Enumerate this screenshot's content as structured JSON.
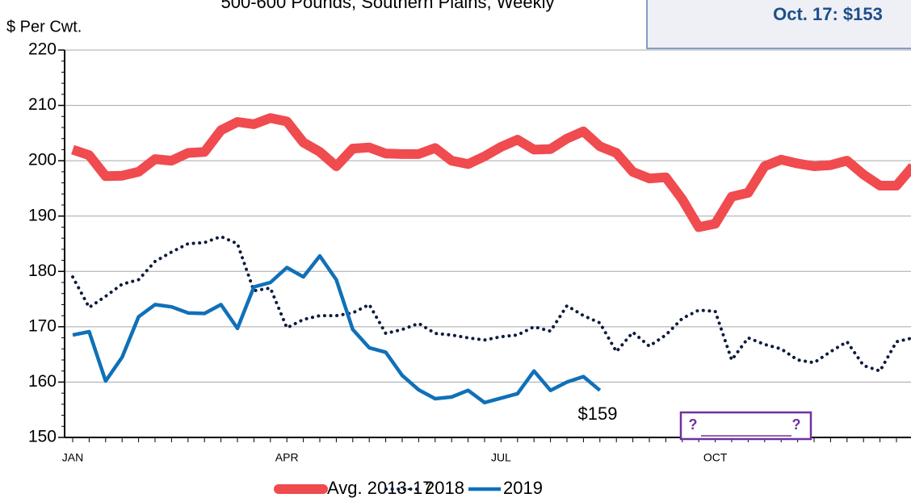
{
  "chart_data": {
    "type": "line",
    "subtitle": "500-600 Pounds, Southern Plains, Weekly",
    "y_label": "$ Per Cwt.",
    "callout": "Oct. 17: $153",
    "annotations": [
      "$159",
      "?",
      "?"
    ],
    "categories": [
      "JAN",
      null,
      null,
      null,
      null,
      null,
      null,
      null,
      null,
      null,
      null,
      null,
      null,
      "APR",
      null,
      null,
      null,
      null,
      null,
      null,
      null,
      null,
      null,
      null,
      null,
      null,
      "JUL",
      null,
      null,
      null,
      null,
      null,
      null,
      null,
      null,
      null,
      null,
      null,
      null,
      "OCT",
      null,
      null,
      null,
      null,
      null,
      null,
      null,
      null,
      null,
      null,
      null,
      null
    ],
    "series": [
      {
        "name": "Avg. 2013-17",
        "color": "#f04b4f",
        "style": "solid-thick",
        "values": [
          202,
          201,
          197.2,
          197.3,
          198,
          200.3,
          200,
          201.4,
          201.6,
          205.5,
          207,
          206.6,
          207.7,
          207.1,
          203.3,
          201.6,
          199,
          202.2,
          202.4,
          201.3,
          201.2,
          201.2,
          202.3,
          200,
          199.4,
          200.8,
          202.5,
          203.8,
          202,
          202.1,
          204,
          205.3,
          202.6,
          201.4,
          198,
          196.8,
          197,
          193,
          188,
          188.6,
          193.5,
          194.2,
          199,
          200.2,
          199.5,
          199,
          199.2,
          200,
          197.5,
          195.5,
          195.5,
          199
        ]
      },
      {
        "name": "2018",
        "color": "#0d1b3e",
        "style": "dotted",
        "values": [
          179,
          173.5,
          175.5,
          177.7,
          178.5,
          181.8,
          183.5,
          185,
          185.2,
          186.3,
          185,
          176.5,
          177,
          169.8,
          171.3,
          172,
          172,
          172.5,
          174,
          168.8,
          169.5,
          170.6,
          168.8,
          168.5,
          168,
          167.6,
          168.2,
          168.5,
          170,
          169.2,
          173.8,
          172,
          170.7,
          165.5,
          169,
          166.5,
          168.5,
          171.5,
          173,
          172.8,
          164,
          168,
          166.8,
          166,
          164,
          163.5,
          165.5,
          167.3,
          163,
          162,
          167.3,
          168
        ]
      },
      {
        "name": "2019",
        "color": "#1070b8",
        "style": "solid",
        "values": [
          168.5,
          169.1,
          160.2,
          164.5,
          171.8,
          174,
          173.6,
          172.5,
          172.4,
          174,
          169.7,
          177.2,
          178,
          180.7,
          179,
          182.8,
          178.5,
          169.5,
          166.2,
          165.4,
          161.2,
          158.6,
          157,
          157.3,
          158.5,
          156.3,
          157.1,
          157.9,
          162,
          158.5,
          160,
          161,
          158.5,
          null,
          null,
          null,
          null,
          null,
          null,
          null,
          null,
          null,
          null,
          null,
          null,
          null,
          null,
          null,
          null,
          null,
          null,
          null
        ]
      }
    ],
    "ylim": [
      150,
      220
    ],
    "yticks": [
      150,
      160,
      170,
      180,
      190,
      200,
      210,
      220
    ],
    "grid": true
  }
}
